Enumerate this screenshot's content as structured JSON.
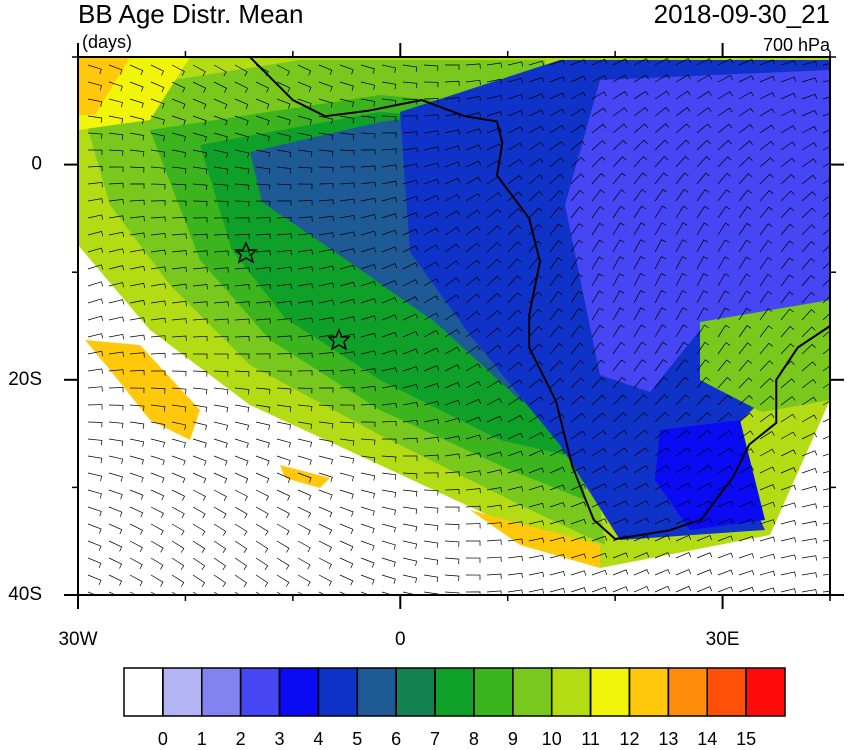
{
  "chart_data": {
    "type": "map",
    "title": "BB Age Distr. Mean",
    "units": "(days)",
    "timestamp": "2018-09-30_21",
    "level": "700 hPa",
    "xlim": [
      -30,
      40
    ],
    "ylim": [
      -40,
      10
    ],
    "xticks": [
      {
        "value": -30,
        "label": "30W"
      },
      0,
      {
        "value": 30,
        "label": "30E"
      }
    ],
    "yticks": [
      {
        "value": -40,
        "label": "40S"
      },
      {
        "value": -20,
        "label": "20S"
      },
      0
    ],
    "colorbar": {
      "levels": [
        0,
        1,
        2,
        3,
        4,
        5,
        6,
        7,
        8,
        9,
        10,
        11,
        12,
        13,
        14,
        15
      ],
      "colors": [
        "#ffffff",
        "#b4b4f5",
        "#8282f0",
        "#4646f5",
        "#0a0af5",
        "#0f32c8",
        "#1e5a96",
        "#148250",
        "#0ea028",
        "#3cb41e",
        "#78c81e",
        "#b4dc14",
        "#f0f50a",
        "#ffc80a",
        "#ff8c0a",
        "#ff500a",
        "#ff0a0a"
      ]
    }
  }
}
